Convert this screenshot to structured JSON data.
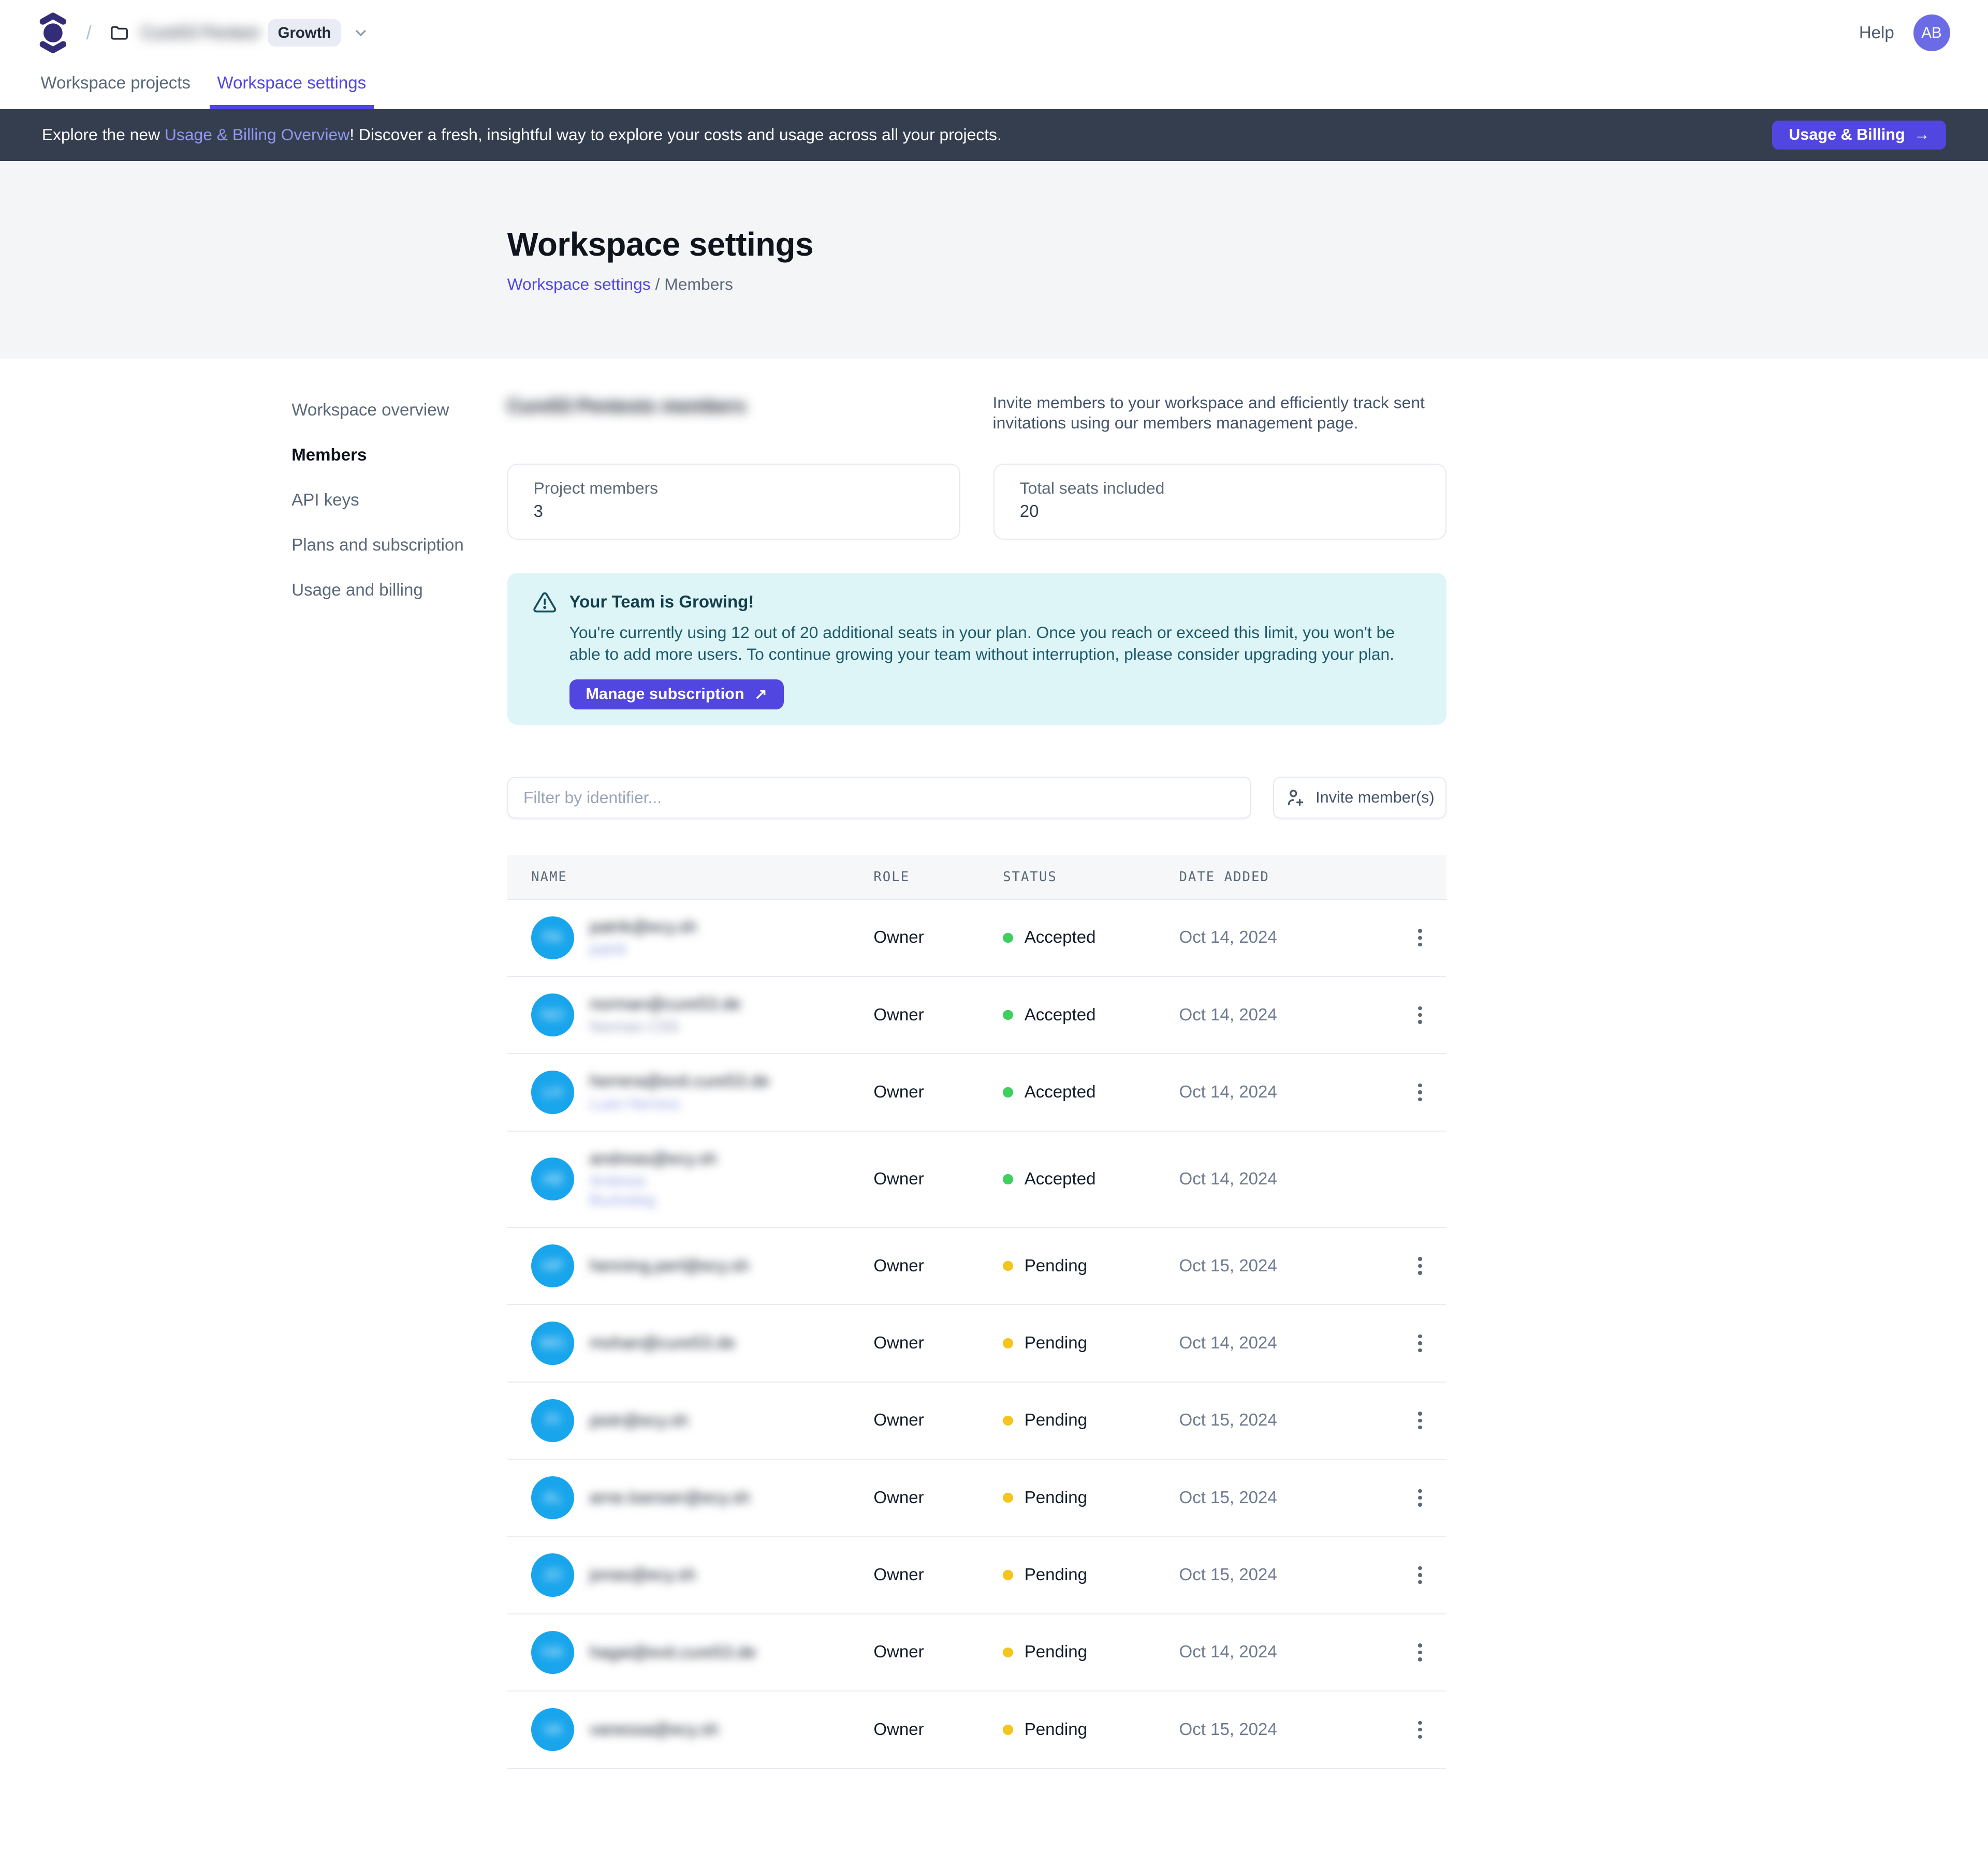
{
  "topbar": {
    "separator": "/",
    "workspace_name": "Cure53 Pentests",
    "plan_badge": "Growth",
    "help_label": "Help",
    "avatar_initials": "AB"
  },
  "tabs": [
    {
      "label": "Workspace projects",
      "active": false
    },
    {
      "label": "Workspace settings",
      "active": true
    }
  ],
  "banner": {
    "text_prefix": "Explore the new ",
    "link_text": "Usage & Billing Overview",
    "text_suffix": "! Discover a fresh, insightful way to explore your costs and usage across all your projects.",
    "button_label": "Usage & Billing",
    "button_arrow": "→"
  },
  "hero": {
    "title": "Workspace settings",
    "breadcrumb_link": "Workspace settings",
    "breadcrumb_separator": "/",
    "breadcrumb_current": "Members"
  },
  "sidebar": {
    "items": [
      {
        "label": "Workspace overview",
        "active": false
      },
      {
        "label": "Members",
        "active": true
      },
      {
        "label": "API keys",
        "active": false
      },
      {
        "label": "Plans and subscription",
        "active": false
      },
      {
        "label": "Usage and billing",
        "active": false
      }
    ]
  },
  "members": {
    "section_title": "Cure53 Pentests members",
    "intro": "Invite members to your workspace and efficiently track sent invitations using our members management page.",
    "stats": [
      {
        "label": "Project members",
        "value": "3"
      },
      {
        "label": "Total seats included",
        "value": "20"
      }
    ],
    "alert": {
      "title": "Your Team is Growing!",
      "body": "You're currently using 12 out of 20 additional seats in your plan. Once you reach or exceed this limit, you won't be able to add more users. To continue growing your team without interruption, please consider upgrading your plan.",
      "button_label": "Manage subscription",
      "button_arrow": "↗"
    },
    "filter_placeholder": "Filter by identifier...",
    "invite_button": "Invite member(s)"
  },
  "table": {
    "headers": [
      "NAME",
      "ROLE",
      "STATUS",
      "DATE ADDED"
    ],
    "rows": [
      {
        "email": "patrik@ecy.sh",
        "initials": "PA",
        "subname": [
          "patrik"
        ],
        "tint": "indigo",
        "role": "Owner",
        "status": "Accepted",
        "date": "Oct 14, 2024",
        "menu": true
      },
      {
        "email": "norman@cure53.de",
        "initials": "NO",
        "subname": [
          "Norman CSS"
        ],
        "tint": "gray",
        "role": "Owner",
        "status": "Accepted",
        "date": "Oct 14, 2024",
        "menu": true
      },
      {
        "email": "herrera@exit.cure53.de",
        "initials": "LH",
        "subname": [
          "Luan Herrera"
        ],
        "tint": "indigo",
        "role": "Owner",
        "status": "Accepted",
        "date": "Oct 14, 2024",
        "menu": true
      },
      {
        "email": "andreas@ecy.sh",
        "initials": "AB",
        "subname": [
          "Andreas",
          "Buckstieg"
        ],
        "tint": "indigo",
        "role": "Owner",
        "status": "Accepted",
        "date": "Oct 14, 2024",
        "menu": false
      },
      {
        "email": "henning.perl@ecy.sh",
        "initials": "HP",
        "subname": [],
        "tint": "gray",
        "role": "Owner",
        "status": "Pending",
        "date": "Oct 15, 2024",
        "menu": true
      },
      {
        "email": "mohan@cure53.de",
        "initials": "MO",
        "subname": [],
        "tint": "gray",
        "role": "Owner",
        "status": "Pending",
        "date": "Oct 14, 2024",
        "menu": true
      },
      {
        "email": "piotr@ecy.sh",
        "initials": "PI",
        "subname": [],
        "tint": "gray",
        "role": "Owner",
        "status": "Pending",
        "date": "Oct 15, 2024",
        "menu": true
      },
      {
        "email": "arne.loenser@ecy.sh",
        "initials": "AL",
        "subname": [],
        "tint": "gray",
        "role": "Owner",
        "status": "Pending",
        "date": "Oct 15, 2024",
        "menu": true
      },
      {
        "email": "jonas@ecy.sh",
        "initials": "JO",
        "subname": [],
        "tint": "gray",
        "role": "Owner",
        "status": "Pending",
        "date": "Oct 15, 2024",
        "menu": true
      },
      {
        "email": "hagai@exit.cure53.de",
        "initials": "HA",
        "subname": [],
        "tint": "gray",
        "role": "Owner",
        "status": "Pending",
        "date": "Oct 14, 2024",
        "menu": true
      },
      {
        "email": "vanessa@ecy.sh",
        "initials": "VA",
        "subname": [],
        "tint": "gray",
        "role": "Owner",
        "status": "Pending",
        "date": "Oct 15, 2024",
        "menu": true
      }
    ]
  },
  "colors": {
    "accent": "#4f46e5",
    "accent_button": "#5246e0",
    "banner_bg": "#343e4e",
    "banner_link": "#9297f0",
    "status_accepted": "#3ecf5e",
    "status_pending": "#f5c51d",
    "member_avatar": "#18a5ec",
    "user_avatar": "#6b6be6",
    "alert_bg": "#def5f8",
    "alert_text": "#1d5a68"
  }
}
